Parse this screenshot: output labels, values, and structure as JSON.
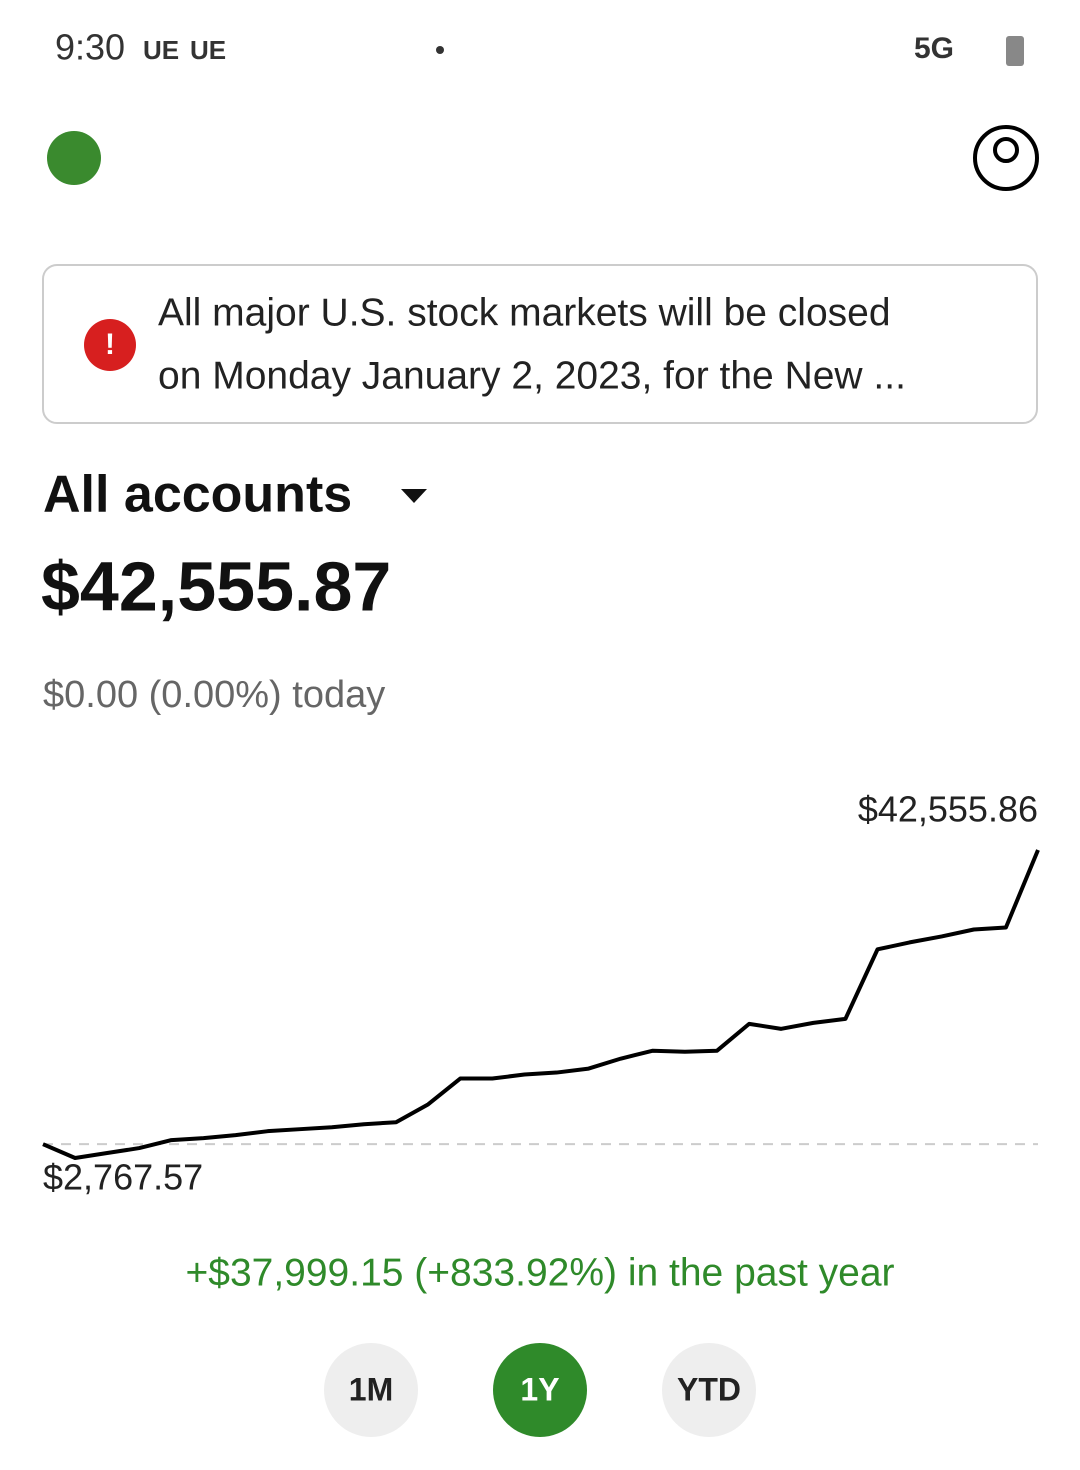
{
  "status_bar": {
    "time": "9:30",
    "icons": [
      "UE",
      "UE"
    ],
    "network": "5G"
  },
  "banner": {
    "lines": [
      "All major U.S. stock markets will be closed",
      "on Monday January 2, 2023, for the New ..."
    ]
  },
  "account": {
    "selector": "All accounts",
    "balance": "$42,555.87",
    "today_change": "$0.00 (0.00%) today"
  },
  "chart_data": {
    "type": "line",
    "color": "#000000",
    "values": [
      4556.72,
      2767.57,
      3409,
      4051,
      5078,
      5334,
      5720,
      6233,
      6490,
      6746,
      7131,
      7388,
      9698,
      13036,
      13036,
      13549,
      13806,
      14319,
      15602,
      16630,
      16501,
      16630,
      20095,
      19453,
      20223,
      20737,
      29721,
      30620,
      31390,
      32288,
      32545,
      42555.86
    ],
    "value_labels": [
      null,
      "$2,767.57",
      null,
      null,
      null,
      null,
      null,
      null,
      null,
      null,
      null,
      null,
      null,
      null,
      null,
      null,
      null,
      null,
      null,
      null,
      null,
      null,
      null,
      null,
      null,
      null,
      null,
      null,
      null,
      null,
      null,
      "$42,555.86"
    ]
  },
  "period_change": "+$37,999.15 (+833.92%) in the past year",
  "ranges": [
    "1M",
    "1Y",
    "YTD"
  ]
}
